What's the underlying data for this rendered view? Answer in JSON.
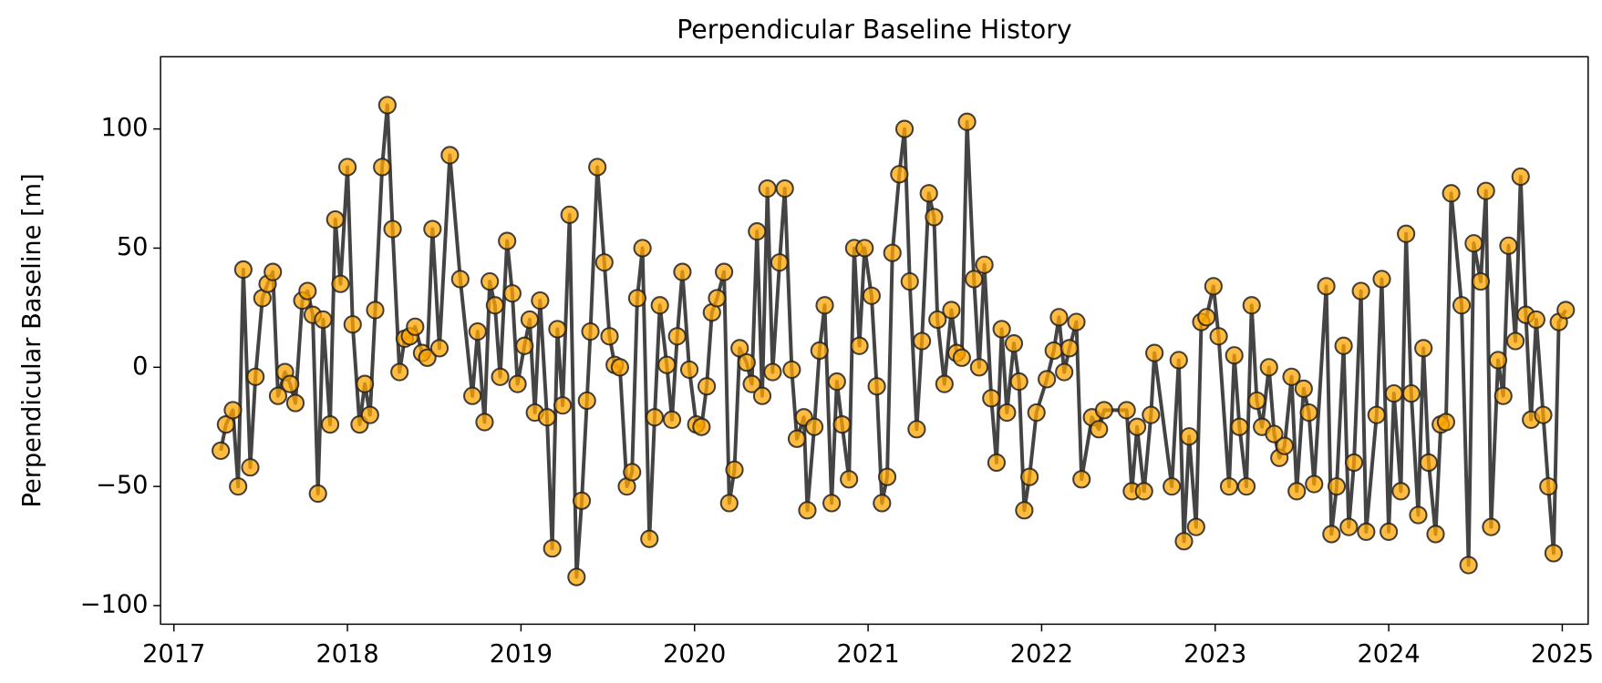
{
  "chart_data": {
    "type": "line",
    "title": "Perpendicular Baseline History",
    "ylabel": "Perpendicular Baseline [m]",
    "line_color": "#444444",
    "marker_color": "#ffa500",
    "xlim": [
      2016.923,
      2025.149
    ],
    "xticks": [
      2017,
      2018,
      2019,
      2020,
      2021,
      2022,
      2023,
      2024,
      2025
    ],
    "ylim": [
      -107.8,
      130.3
    ],
    "yticks": [
      {
        "value": -100,
        "label": "−100"
      },
      {
        "value": -50,
        "label": "−50"
      },
      0,
      50,
      100
    ],
    "x": [
      2017.27,
      2017.3,
      2017.34,
      2017.37,
      2017.4,
      2017.44,
      2017.47,
      2017.51,
      2017.54,
      2017.57,
      2017.6,
      2017.64,
      2017.67,
      2017.7,
      2017.74,
      2017.77,
      2017.8,
      2017.83,
      2017.86,
      2017.9,
      2017.93,
      2017.96,
      2018.0,
      2018.03,
      2018.07,
      2018.1,
      2018.13,
      2018.16,
      2018.2,
      2018.23,
      2018.26,
      2018.3,
      2018.33,
      2018.36,
      2018.39,
      2018.43,
      2018.46,
      2018.49,
      2018.53,
      2018.59,
      2018.65,
      2018.72,
      2018.75,
      2018.79,
      2018.82,
      2018.85,
      2018.88,
      2018.92,
      2018.95,
      2018.98,
      2019.02,
      2019.05,
      2019.08,
      2019.11,
      2019.15,
      2019.18,
      2019.21,
      2019.24,
      2019.28,
      2019.32,
      2019.35,
      2019.38,
      2019.4,
      2019.44,
      2019.48,
      2019.51,
      2019.54,
      2019.57,
      2019.61,
      2019.64,
      2019.67,
      2019.7,
      2019.74,
      2019.77,
      2019.8,
      2019.84,
      2019.87,
      2019.9,
      2019.93,
      2019.97,
      2020.01,
      2020.04,
      2020.07,
      2020.1,
      2020.13,
      2020.17,
      2020.2,
      2020.23,
      2020.26,
      2020.3,
      2020.33,
      2020.36,
      2020.39,
      2020.42,
      2020.45,
      2020.49,
      2020.52,
      2020.56,
      2020.59,
      2020.63,
      2020.65,
      2020.69,
      2020.72,
      2020.75,
      2020.79,
      2020.82,
      2020.85,
      2020.89,
      2020.92,
      2020.95,
      2020.98,
      2021.02,
      2021.05,
      2021.08,
      2021.11,
      2021.14,
      2021.18,
      2021.21,
      2021.24,
      2021.28,
      2021.31,
      2021.35,
      2021.38,
      2021.4,
      2021.44,
      2021.48,
      2021.51,
      2021.54,
      2021.57,
      2021.61,
      2021.64,
      2021.67,
      2021.71,
      2021.74,
      2021.77,
      2021.8,
      2021.84,
      2021.87,
      2021.9,
      2021.93,
      2021.97,
      2022.03,
      2022.07,
      2022.1,
      2022.13,
      2022.16,
      2022.2,
      2022.23,
      2022.29,
      2022.33,
      2022.36,
      2022.49,
      2022.52,
      2022.55,
      2022.59,
      2022.63,
      2022.65,
      2022.75,
      2022.79,
      2022.82,
      2022.85,
      2022.89,
      2022.92,
      2022.95,
      2022.99,
      2023.02,
      2023.08,
      2023.11,
      2023.14,
      2023.18,
      2023.21,
      2023.24,
      2023.27,
      2023.31,
      2023.34,
      2023.37,
      2023.4,
      2023.44,
      2023.47,
      2023.51,
      2023.54,
      2023.57,
      2023.64,
      2023.67,
      2023.7,
      2023.74,
      2023.77,
      2023.8,
      2023.84,
      2023.87,
      2023.93,
      2023.96,
      2024.0,
      2024.03,
      2024.07,
      2024.1,
      2024.13,
      2024.17,
      2024.2,
      2024.23,
      2024.27,
      2024.3,
      2024.33,
      2024.36,
      2024.42,
      2024.46,
      2024.49,
      2024.53,
      2024.56,
      2024.59,
      2024.63,
      2024.66,
      2024.69,
      2024.73,
      2024.76,
      2024.79,
      2024.82,
      2024.85,
      2024.89,
      2024.92,
      2024.95,
      2024.98,
      2025.02
    ],
    "values": [
      -35,
      -24,
      -18,
      -50,
      41,
      -42,
      -4,
      29,
      35,
      40,
      -12,
      -2,
      -7,
      -15,
      28,
      32,
      22,
      -53,
      20,
      -24,
      62,
      35,
      84,
      18,
      -24,
      -7,
      -20,
      24,
      84,
      110,
      58,
      -2,
      12,
      13,
      17,
      6,
      4,
      58,
      8,
      89,
      37,
      -12,
      15,
      -23,
      36,
      26,
      -4,
      53,
      31,
      -7,
      9,
      20,
      -19,
      28,
      -21,
      -76,
      16,
      -16,
      64,
      -88,
      -56,
      -14,
      15,
      84,
      44,
      13,
      1,
      0,
      -50,
      -44,
      29,
      50,
      -72,
      -21,
      26,
      1,
      -22,
      13,
      40,
      -1,
      -24,
      -25,
      -8,
      23,
      29,
      40,
      -57,
      -43,
      8,
      2,
      -7,
      57,
      -12,
      75,
      -2,
      44,
      75,
      -1,
      -30,
      -21,
      -60,
      -25,
      7,
      26,
      -57,
      -6,
      -24,
      -47,
      50,
      9,
      50,
      30,
      -8,
      -57,
      -46,
      48,
      81,
      100,
      36,
      -26,
      11,
      73,
      63,
      20,
      -7,
      24,
      6,
      4,
      103,
      37,
      0,
      43,
      -13,
      -40,
      16,
      -19,
      10,
      -6,
      -60,
      -46,
      -19,
      -5,
      7,
      21,
      -2,
      8,
      19,
      -47,
      -21,
      -26,
      -18,
      -18,
      -52,
      -25,
      -52,
      -20,
      6,
      -50,
      3,
      -73,
      -29,
      -67,
      19,
      21,
      34,
      13,
      -50,
      5,
      -25,
      -50,
      26,
      -14,
      -25,
      0,
      -28,
      -38,
      -33,
      -4,
      -52,
      -9,
      -19,
      -49,
      34,
      -70,
      -50,
      9,
      -67,
      -40,
      32,
      -69,
      -20,
      37,
      -69,
      -11,
      -52,
      56,
      -11,
      -62,
      8,
      -40,
      -70,
      -24,
      -23,
      73,
      26,
      -83,
      52,
      36,
      74,
      -67,
      3,
      -12,
      51,
      11,
      80,
      22,
      -22,
      20,
      -20,
      -50,
      -78,
      19,
      24
    ]
  }
}
